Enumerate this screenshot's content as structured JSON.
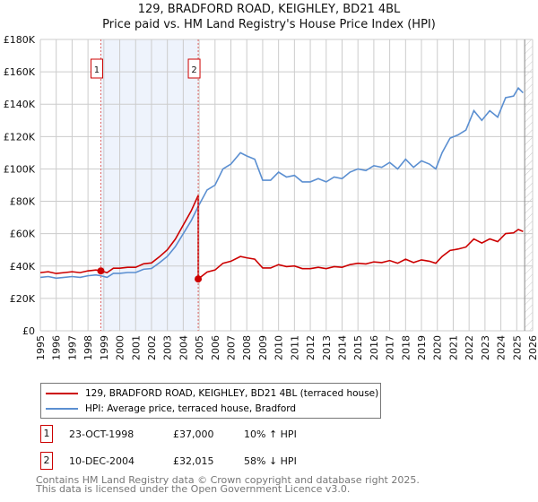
{
  "title": "129, BRADFORD ROAD, KEIGHLEY, BD21 4BL",
  "subtitle": "Price paid vs. HM Land Registry's House Price Index (HPI)",
  "chart_data": {
    "type": "line",
    "xlim": [
      1995,
      2026
    ],
    "ylim": [
      0,
      180000
    ],
    "x_ticks": [
      "1995",
      "1996",
      "1997",
      "1998",
      "1999",
      "2000",
      "2001",
      "2002",
      "2003",
      "2004",
      "2005",
      "2006",
      "2007",
      "2008",
      "2009",
      "2010",
      "2011",
      "2012",
      "2013",
      "2014",
      "2015",
      "2016",
      "2017",
      "2018",
      "2019",
      "2020",
      "2021",
      "2022",
      "2023",
      "2024",
      "2025",
      "2026"
    ],
    "y_ticks": [
      "£0",
      "£20K",
      "£40K",
      "£60K",
      "£80K",
      "£100K",
      "£120K",
      "£140K",
      "£160K",
      "£180K"
    ],
    "hpi_series": {
      "name": "HPI: Average price, terraced house, Bradford",
      "color": "#5b8fd1",
      "x": [
        1995,
        1995.5,
        1996,
        1996.5,
        1997,
        1997.5,
        1998,
        1998.5,
        1998.8,
        1999.2,
        1999.6,
        2000,
        2000.5,
        2001,
        2001.5,
        2002,
        2002.5,
        2003,
        2003.5,
        2004,
        2004.5,
        2004.9,
        2005.5,
        2006,
        2006.5,
        2007,
        2007.6,
        2008,
        2008.5,
        2009,
        2009.5,
        2010,
        2010.5,
        2011,
        2011.5,
        2012,
        2012.5,
        2013,
        2013.5,
        2014,
        2014.5,
        2015,
        2015.5,
        2016,
        2016.5,
        2017,
        2017.5,
        2018,
        2018.5,
        2019,
        2019.5,
        2019.9,
        2020.3,
        2020.8,
        2021.3,
        2021.8,
        2022.3,
        2022.8,
        2023.3,
        2023.8,
        2024.3,
        2024.8,
        2025.1,
        2025.4
      ],
      "y": [
        33000,
        33500,
        32500,
        33000,
        33500,
        33000,
        34000,
        34500,
        34000,
        33000,
        35500,
        35500,
        36000,
        36000,
        38000,
        38500,
        42000,
        46000,
        52000,
        60000,
        68000,
        76000,
        87000,
        90000,
        100000,
        103000,
        110000,
        108000,
        106000,
        93000,
        93000,
        98000,
        95000,
        96000,
        92000,
        92000,
        94000,
        92000,
        95000,
        94000,
        98000,
        100000,
        99000,
        102000,
        101000,
        104000,
        100000,
        106000,
        101000,
        105000,
        103000,
        100000,
        110000,
        119000,
        121000,
        124000,
        136000,
        130000,
        136000,
        132000,
        144000,
        145000,
        150000,
        147000
      ]
    },
    "property_series": {
      "name": "129, BRADFORD ROAD, KEIGHLEY, BD21 4BL (terraced house)",
      "color": "#cc0000"
    },
    "sales": [
      {
        "id": "1",
        "x": 1998.81,
        "price": 37000
      },
      {
        "id": "2",
        "x": 2004.94,
        "price": 32015
      }
    ],
    "forecast_start": 2025.5
  },
  "legend": {
    "property": "129, BRADFORD ROAD, KEIGHLEY, BD21 4BL (terraced house)",
    "hpi": "HPI: Average price, terraced house, Bradford"
  },
  "sales_table": [
    {
      "num": "1",
      "date": "23-OCT-1998",
      "price": "£37,000",
      "diff": "10% ↑ HPI"
    },
    {
      "num": "2",
      "date": "10-DEC-2004",
      "price": "£32,015",
      "diff": "58% ↓ HPI"
    }
  ],
  "footer": {
    "line1": "Contains HM Land Registry data © Crown copyright and database right 2025.",
    "line2": "This data is licensed under the Open Government Licence v3.0."
  }
}
